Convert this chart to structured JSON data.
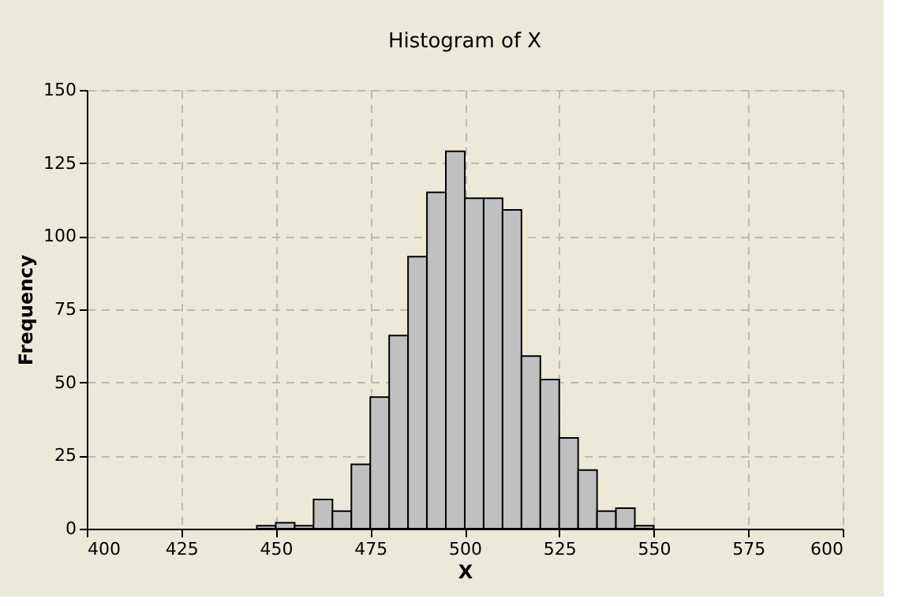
{
  "chart_data": {
    "type": "histogram",
    "title": "Histogram of X",
    "xlabel": "X",
    "ylabel": "Frequency",
    "bins": [
      445,
      450,
      455,
      460,
      465,
      470,
      475,
      480,
      485,
      490,
      495,
      500,
      505,
      510,
      515,
      520,
      525,
      530,
      535,
      540,
      545,
      550
    ],
    "values": [
      1,
      2,
      1,
      10,
      6,
      22,
      45,
      66,
      93,
      115,
      129,
      113,
      113,
      109,
      59,
      51,
      31,
      20,
      6,
      7,
      1
    ],
    "color": "#c0c0c0",
    "xlim": [
      400,
      600
    ],
    "xticks": [
      400,
      425,
      450,
      475,
      500,
      525,
      550,
      575,
      600
    ],
    "ylim": [
      0,
      150
    ],
    "yticks": [
      0,
      25,
      50,
      75,
      100,
      125,
      150
    ],
    "grid": true
  }
}
